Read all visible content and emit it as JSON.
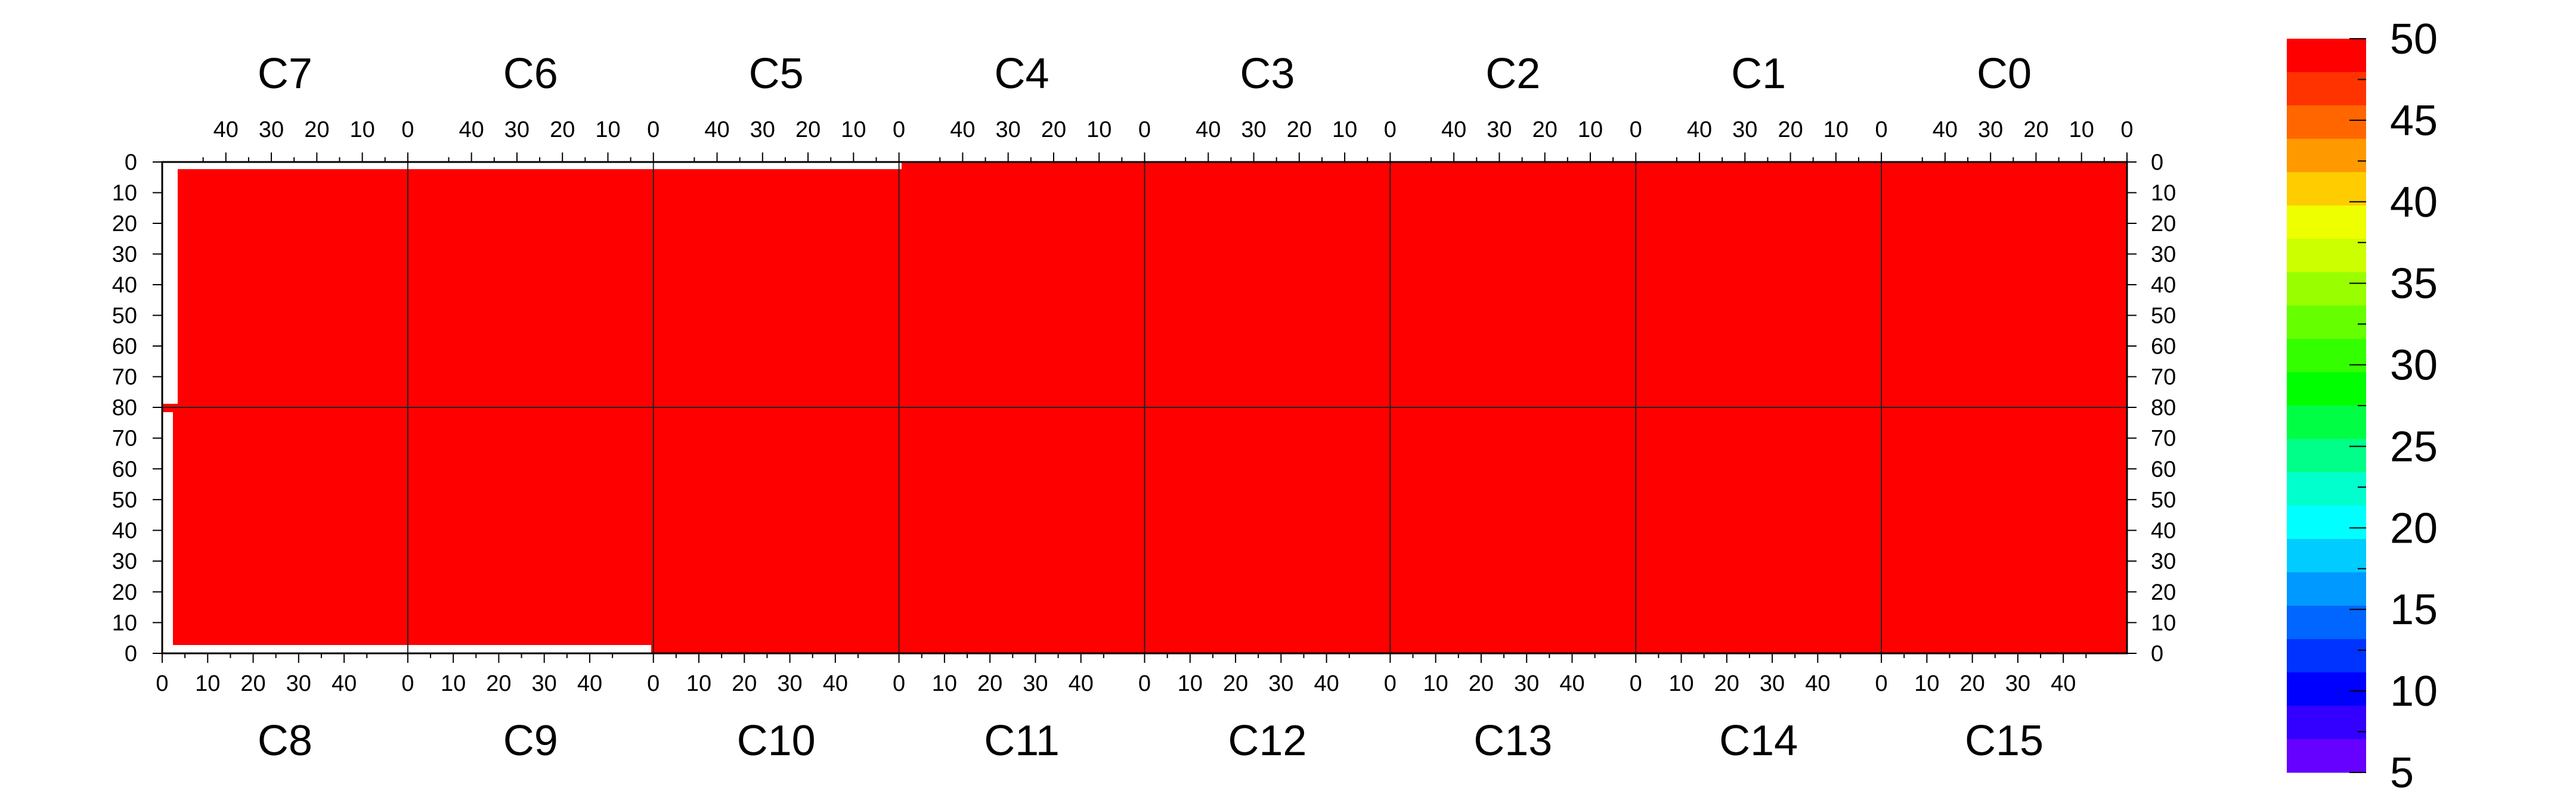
{
  "chart_data": {
    "type": "heatmap",
    "title": "",
    "xlabel": "",
    "ylabel": "",
    "value_range": [
      5,
      50
    ],
    "fill_value": 50,
    "grid": true,
    "legend": "right",
    "top_chips": [
      "C7",
      "C6",
      "C5",
      "C4",
      "C3",
      "C2",
      "C1",
      "C0"
    ],
    "bottom_chips": [
      "C8",
      "C9",
      "C10",
      "C11",
      "C12",
      "C13",
      "C14",
      "C15"
    ],
    "top_tick_labels": [
      "40",
      "30",
      "20",
      "10",
      "0"
    ],
    "bottom_tick_labels": [
      "0",
      "10",
      "20",
      "30",
      "40"
    ],
    "row_tick_labels_top_half": [
      "0",
      "10",
      "20",
      "30",
      "40",
      "50",
      "60",
      "70",
      "80"
    ],
    "row_tick_labels_bottom_half": [
      "70",
      "60",
      "50",
      "40",
      "30",
      "20",
      "10",
      "0"
    ],
    "colorbar_ticks": [
      "50",
      "45",
      "40",
      "35",
      "30",
      "25",
      "20",
      "15",
      "10",
      "5"
    ],
    "colorbar_colors": [
      "#ff0000",
      "#ff3300",
      "#ff6600",
      "#ff9900",
      "#ffcc00",
      "#eeff00",
      "#ccff00",
      "#99ff00",
      "#66ff00",
      "#33ff00",
      "#00ff00",
      "#00ff44",
      "#00ff88",
      "#00ffcc",
      "#00ffff",
      "#00ccff",
      "#0099ff",
      "#0066ff",
      "#0033ff",
      "#0000ff",
      "#3300ff",
      "#6600ff"
    ],
    "colors": {
      "fill": "#ff0000",
      "frame": "#000000",
      "grid": "#222222"
    }
  }
}
